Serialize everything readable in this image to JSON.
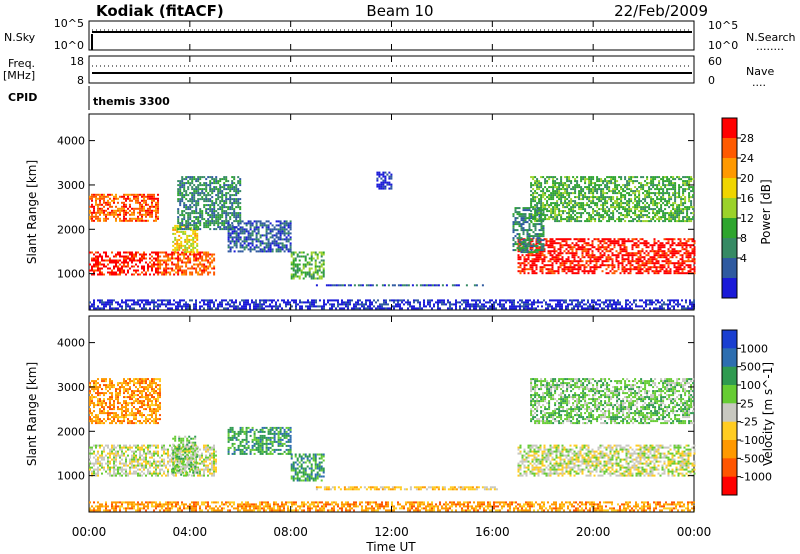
{
  "header": {
    "site": "Kodiak (fitACF)",
    "beam": "Beam 10",
    "date": "22/Feb/2009"
  },
  "nsky_panel": {
    "left_label": "N.Sky",
    "left_ticks": [
      "10^5",
      "10^0"
    ],
    "right_ticks": [
      "10^5",
      "10^0"
    ],
    "right_label": "N.Search",
    "right_line": "........"
  },
  "freq_panel": {
    "left_label_1": "Freq.",
    "left_label_2": "[MHz]",
    "left_ticks": [
      "18",
      "8"
    ],
    "right_ticks": [
      "60",
      "0"
    ],
    "right_label": "Nave",
    "right_line": "...."
  },
  "cpid": {
    "label": "CPID",
    "program": "themis 3300"
  },
  "time_axis": {
    "ticks": [
      "00:00",
      "04:00",
      "08:00",
      "12:00",
      "16:00",
      "20:00",
      "00:00"
    ],
    "label": "Time UT"
  },
  "chart_data": [
    {
      "type": "heatmap",
      "name": "power",
      "ylabel": "Slant Range [km]",
      "ylim": [
        180,
        4600
      ],
      "xlim_hours": [
        0,
        24
      ],
      "y_ticks": [
        1000,
        2000,
        3000,
        4000
      ],
      "colorbar": {
        "label": "Power [dB]",
        "ticks": [
          "28",
          "24",
          "20",
          "16",
          "12",
          "8",
          "4"
        ],
        "colors": [
          "#ff0000",
          "#ff5a00",
          "#ff9900",
          "#f0d500",
          "#9bd22a",
          "#2ea52e",
          "#368a64",
          "#2f5aa0",
          "#1a1ad8"
        ]
      },
      "regions": [
        {
          "t": [
            0.0,
            2.7
          ],
          "r": [
            2200,
            2800
          ],
          "level": 1
        },
        {
          "t": [
            0.0,
            2.7
          ],
          "r": [
            1000,
            1500
          ],
          "level": 0
        },
        {
          "t": [
            2.7,
            5.0
          ],
          "r": [
            1000,
            1500
          ],
          "level": 1
        },
        {
          "t": [
            3.3,
            4.3
          ],
          "r": [
            1500,
            2100
          ],
          "level": 3
        },
        {
          "t": [
            3.5,
            6.0
          ],
          "r": [
            2000,
            3200
          ],
          "level": 6
        },
        {
          "t": [
            5.5,
            8.0
          ],
          "r": [
            1500,
            2200
          ],
          "level": 7
        },
        {
          "t": [
            8.0,
            9.3
          ],
          "r": [
            900,
            1500
          ],
          "level": 5
        },
        {
          "t": [
            9.0,
            16.2
          ],
          "r": [
            720,
            760
          ],
          "level": 7
        },
        {
          "t": [
            11.4,
            12.0
          ],
          "r": [
            2900,
            3300
          ],
          "level": 8
        },
        {
          "t": [
            17.0,
            24.0
          ],
          "r": [
            1000,
            1800
          ],
          "level": 0
        },
        {
          "t": [
            16.8,
            18.0
          ],
          "r": [
            1500,
            2500
          ],
          "level": 6
        },
        {
          "t": [
            17.5,
            24.0
          ],
          "r": [
            2200,
            3200
          ],
          "level": 5
        },
        {
          "t": [
            0.0,
            24.0
          ],
          "r": [
            200,
            420
          ],
          "level": 8
        }
      ]
    },
    {
      "type": "heatmap",
      "name": "velocity",
      "ylabel": "Slant Range [km]",
      "ylim": [
        180,
        4600
      ],
      "xlim_hours": [
        0,
        24
      ],
      "y_ticks": [
        1000,
        2000,
        3000,
        4000
      ],
      "colorbar": {
        "label": "Velocity [m s^-1]",
        "ticks": [
          "1000",
          "500",
          "100",
          "25",
          "-25",
          "-100",
          "-500",
          "-1000"
        ],
        "colors": [
          "#1a3fd0",
          "#2d6eb0",
          "#2f9a50",
          "#66cc33",
          "#c8c8c0",
          "#ffcc22",
          "#ff9900",
          "#ff5500",
          "#ff0000"
        ]
      },
      "regions": [
        {
          "t": [
            0.0,
            2.8
          ],
          "r": [
            2200,
            3200
          ],
          "level": 6
        },
        {
          "t": [
            0.0,
            5.0
          ],
          "r": [
            1000,
            1700
          ],
          "level": 4
        },
        {
          "t": [
            3.3,
            4.3
          ],
          "r": [
            1000,
            1900
          ],
          "level": 3
        },
        {
          "t": [
            5.5,
            8.0
          ],
          "r": [
            1500,
            2100
          ],
          "level": 2
        },
        {
          "t": [
            8.0,
            9.3
          ],
          "r": [
            900,
            1500
          ],
          "level": 2
        },
        {
          "t": [
            9.0,
            16.2
          ],
          "r": [
            700,
            760
          ],
          "level": 5
        },
        {
          "t": [
            17.0,
            24.0
          ],
          "r": [
            1000,
            1700
          ],
          "level": 4
        },
        {
          "t": [
            17.5,
            24.0
          ],
          "r": [
            2200,
            3200
          ],
          "level": 3
        },
        {
          "t": [
            0.0,
            24.0
          ],
          "r": [
            200,
            420
          ],
          "level": 6
        }
      ]
    }
  ]
}
